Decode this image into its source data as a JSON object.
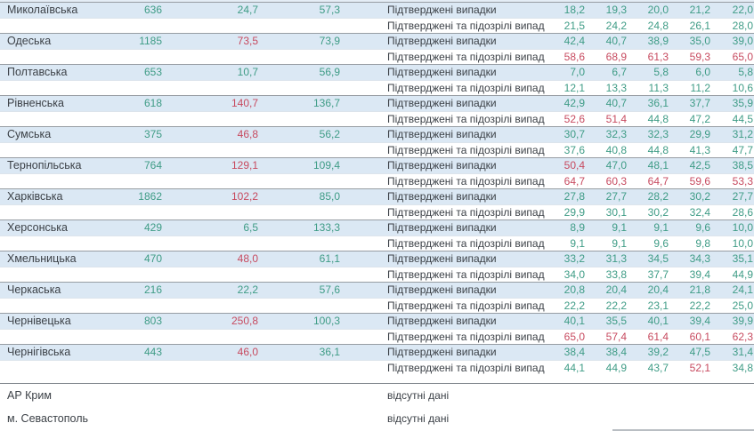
{
  "colors": {
    "green": "#3f9c86",
    "red": "#c74a5f",
    "row_highlight": "#dbe8f4",
    "block_border": "#979da3",
    "inner_border": "#dce4ec",
    "section_border": "#80868c",
    "text": "#3c4147"
  },
  "chart_data": {
    "type": "table",
    "case_row_labels": [
      "Підтверджені випадки",
      "Підтверджені та підозрілі випадки"
    ],
    "no_data_label": "відсутні дані",
    "regions": [
      {
        "name": "Миколаївська",
        "total": "636",
        "rate_a": "24,7",
        "rate_a_red": false,
        "rate_b": "57,3",
        "rate_b_red": false,
        "confirmed": {
          "values": [
            "18,2",
            "19,3",
            "20,0",
            "21,2",
            "22,0"
          ],
          "red": [
            0,
            0,
            0,
            0,
            0
          ]
        },
        "confirmed_suspected": {
          "values": [
            "21,5",
            "24,2",
            "24,8",
            "26,1",
            "28,0"
          ],
          "red": [
            0,
            0,
            0,
            0,
            0
          ]
        }
      },
      {
        "name": "Одеська",
        "total": "1185",
        "rate_a": "73,5",
        "rate_a_red": true,
        "rate_b": "73,9",
        "rate_b_red": false,
        "confirmed": {
          "values": [
            "42,4",
            "40,7",
            "38,9",
            "35,0",
            "39,0"
          ],
          "red": [
            0,
            0,
            0,
            0,
            0
          ]
        },
        "confirmed_suspected": {
          "values": [
            "58,6",
            "68,9",
            "61,3",
            "59,3",
            "65,0"
          ],
          "red": [
            1,
            1,
            1,
            1,
            1
          ]
        }
      },
      {
        "name": "Полтавська",
        "total": "653",
        "rate_a": "10,7",
        "rate_a_red": false,
        "rate_b": "56,9",
        "rate_b_red": false,
        "confirmed": {
          "values": [
            "7,0",
            "6,7",
            "5,8",
            "6,0",
            "5,8"
          ],
          "red": [
            0,
            0,
            0,
            0,
            0
          ]
        },
        "confirmed_suspected": {
          "values": [
            "12,1",
            "13,3",
            "11,3",
            "11,2",
            "10,6"
          ],
          "red": [
            0,
            0,
            0,
            0,
            0
          ]
        }
      },
      {
        "name": "Рівненська",
        "total": "618",
        "rate_a": "140,7",
        "rate_a_red": true,
        "rate_b": "136,7",
        "rate_b_red": false,
        "confirmed": {
          "values": [
            "42,9",
            "40,7",
            "36,1",
            "37,7",
            "35,9"
          ],
          "red": [
            0,
            0,
            0,
            0,
            0
          ]
        },
        "confirmed_suspected": {
          "values": [
            "52,6",
            "51,4",
            "44,8",
            "47,2",
            "44,5"
          ],
          "red": [
            1,
            1,
            0,
            0,
            0
          ]
        }
      },
      {
        "name": "Сумська",
        "total": "375",
        "rate_a": "46,8",
        "rate_a_red": true,
        "rate_b": "56,2",
        "rate_b_red": false,
        "confirmed": {
          "values": [
            "30,7",
            "32,3",
            "32,3",
            "29,9",
            "31,2"
          ],
          "red": [
            0,
            0,
            0,
            0,
            0
          ]
        },
        "confirmed_suspected": {
          "values": [
            "37,6",
            "40,8",
            "44,8",
            "41,3",
            "47,7"
          ],
          "red": [
            0,
            0,
            0,
            0,
            0
          ]
        }
      },
      {
        "name": "Тернопільська",
        "total": "764",
        "rate_a": "129,1",
        "rate_a_red": true,
        "rate_b": "109,4",
        "rate_b_red": false,
        "confirmed": {
          "values": [
            "50,4",
            "47,0",
            "48,1",
            "42,5",
            "38,5"
          ],
          "red": [
            1,
            0,
            0,
            0,
            0
          ]
        },
        "confirmed_suspected": {
          "values": [
            "64,7",
            "60,3",
            "64,7",
            "59,6",
            "53,3"
          ],
          "red": [
            1,
            1,
            1,
            1,
            1
          ]
        }
      },
      {
        "name": "Харківська",
        "total": "1862",
        "rate_a": "102,2",
        "rate_a_red": true,
        "rate_b": "85,0",
        "rate_b_red": false,
        "confirmed": {
          "values": [
            "27,8",
            "27,7",
            "28,2",
            "30,2",
            "27,7"
          ],
          "red": [
            0,
            0,
            0,
            0,
            0
          ]
        },
        "confirmed_suspected": {
          "values": [
            "29,9",
            "30,1",
            "30,2",
            "32,4",
            "28,6"
          ],
          "red": [
            0,
            0,
            0,
            0,
            0
          ]
        }
      },
      {
        "name": "Херсонська",
        "total": "429",
        "rate_a": "6,5",
        "rate_a_red": false,
        "rate_b": "133,3",
        "rate_b_red": false,
        "confirmed": {
          "values": [
            "8,9",
            "9,1",
            "9,1",
            "9,6",
            "10,0"
          ],
          "red": [
            0,
            0,
            0,
            0,
            0
          ]
        },
        "confirmed_suspected": {
          "values": [
            "9,1",
            "9,1",
            "9,6",
            "9,8",
            "10,0"
          ],
          "red": [
            0,
            0,
            0,
            0,
            0
          ]
        }
      },
      {
        "name": "Хмельницька",
        "total": "470",
        "rate_a": "48,0",
        "rate_a_red": true,
        "rate_b": "61,1",
        "rate_b_red": false,
        "confirmed": {
          "values": [
            "33,2",
            "31,3",
            "34,5",
            "34,3",
            "35,1"
          ],
          "red": [
            0,
            0,
            0,
            0,
            0
          ]
        },
        "confirmed_suspected": {
          "values": [
            "34,0",
            "33,8",
            "37,7",
            "39,4",
            "44,9"
          ],
          "red": [
            0,
            0,
            0,
            0,
            0
          ]
        }
      },
      {
        "name": "Черкаська",
        "total": "216",
        "rate_a": "22,2",
        "rate_a_red": false,
        "rate_b": "57,6",
        "rate_b_red": false,
        "confirmed": {
          "values": [
            "20,8",
            "20,4",
            "20,4",
            "21,8",
            "24,1"
          ],
          "red": [
            0,
            0,
            0,
            0,
            0
          ]
        },
        "confirmed_suspected": {
          "values": [
            "22,2",
            "22,2",
            "23,1",
            "22,2",
            "25,0"
          ],
          "red": [
            0,
            0,
            0,
            0,
            0
          ]
        }
      },
      {
        "name": "Чернівецька",
        "total": "803",
        "rate_a": "250,8",
        "rate_a_red": true,
        "rate_b": "100,3",
        "rate_b_red": false,
        "confirmed": {
          "values": [
            "40,1",
            "35,5",
            "40,1",
            "39,4",
            "39,9"
          ],
          "red": [
            0,
            0,
            0,
            0,
            0
          ]
        },
        "confirmed_suspected": {
          "values": [
            "65,0",
            "57,4",
            "61,4",
            "60,1",
            "62,3"
          ],
          "red": [
            1,
            1,
            1,
            1,
            1
          ]
        }
      },
      {
        "name": "Чернігівська",
        "total": "443",
        "rate_a": "46,0",
        "rate_a_red": true,
        "rate_b": "36,1",
        "rate_b_red": false,
        "confirmed": {
          "values": [
            "38,4",
            "38,4",
            "39,2",
            "47,5",
            "31,4"
          ],
          "red": [
            0,
            0,
            0,
            0,
            0
          ]
        },
        "confirmed_suspected": {
          "values": [
            "44,1",
            "44,9",
            "43,7",
            "52,1",
            "34,8"
          ],
          "red": [
            0,
            0,
            0,
            1,
            0
          ]
        }
      },
      {
        "name": "АР Крим",
        "no_data": true
      },
      {
        "name": "м. Севастополь",
        "no_data": true
      }
    ]
  }
}
